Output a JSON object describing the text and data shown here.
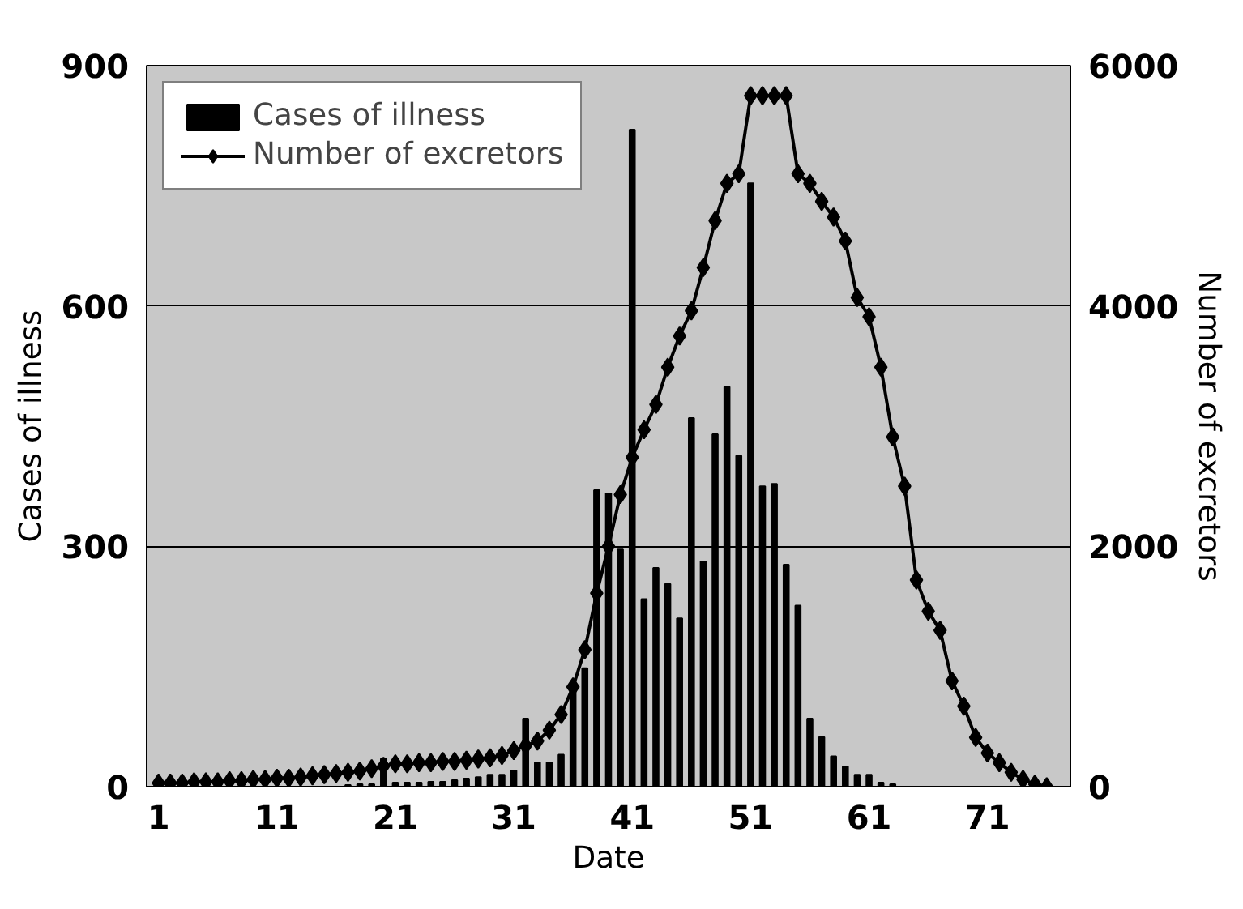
{
  "chart_data": {
    "type": "bar",
    "xlabel": "Date",
    "ylabel": "Cases of illness",
    "y2label": "Number of excretors",
    "x": [
      1,
      2,
      3,
      4,
      5,
      6,
      7,
      8,
      9,
      10,
      11,
      12,
      13,
      14,
      15,
      16,
      17,
      18,
      19,
      20,
      21,
      22,
      23,
      24,
      25,
      26,
      27,
      28,
      29,
      30,
      31,
      32,
      33,
      34,
      35,
      36,
      37,
      38,
      39,
      40,
      41,
      42,
      43,
      44,
      45,
      46,
      47,
      48,
      49,
      50,
      51,
      52,
      53,
      54,
      55,
      56,
      57,
      58,
      59,
      60,
      61,
      62,
      63,
      64,
      65,
      66,
      67,
      68,
      69,
      70,
      71,
      72,
      73,
      74,
      75,
      76
    ],
    "series": [
      {
        "name": "Cases of illness",
        "color": "#000000",
        "values": [
          0,
          0,
          0,
          0,
          0,
          0,
          0,
          0,
          0,
          0,
          0,
          0,
          0,
          0,
          0,
          0,
          2,
          3,
          3,
          35,
          5,
          5,
          5,
          6,
          6,
          8,
          10,
          12,
          15,
          15,
          20,
          85,
          30,
          30,
          40,
          120,
          148,
          370,
          366,
          296,
          820,
          234,
          273,
          253,
          210,
          460,
          281,
          440,
          499,
          413,
          753,
          375,
          378,
          277,
          226,
          85,
          62,
          38,
          25,
          15,
          15,
          5,
          3,
          0,
          0,
          0,
          0,
          0,
          0,
          0,
          0,
          0,
          0,
          0,
          0,
          0
        ]
      },
      {
        "name": "Number of excretors",
        "type": "line",
        "axis": "y2",
        "color": "#000000",
        "marker": "diamond",
        "values": [
          30,
          30,
          30,
          40,
          40,
          40,
          50,
          50,
          60,
          60,
          70,
          70,
          80,
          90,
          100,
          110,
          120,
          130,
          150,
          170,
          190,
          190,
          200,
          200,
          210,
          210,
          220,
          230,
          240,
          260,
          300,
          340,
          380,
          470,
          600,
          830,
          1140,
          1610,
          2000,
          2430,
          2740,
          2970,
          3180,
          3490,
          3750,
          3960,
          4320,
          4710,
          5020,
          5100,
          5750,
          5750,
          5750,
          5750,
          5100,
          5020,
          4870,
          4740,
          4540,
          4070,
          3910,
          3490,
          2910,
          2500,
          1720,
          1460,
          1300,
          880,
          670,
          410,
          280,
          200,
          120,
          60,
          20,
          0
        ]
      }
    ],
    "xlim": [
      0,
      78
    ],
    "xticks": [
      1,
      11,
      21,
      31,
      41,
      51,
      61,
      71
    ],
    "ylim": [
      0,
      900
    ],
    "yticks": [
      0,
      300,
      600,
      900
    ],
    "y2lim": [
      0,
      6000
    ],
    "y2ticks": [
      0,
      2000,
      4000,
      6000
    ],
    "grid": "y",
    "legend": "top left"
  }
}
